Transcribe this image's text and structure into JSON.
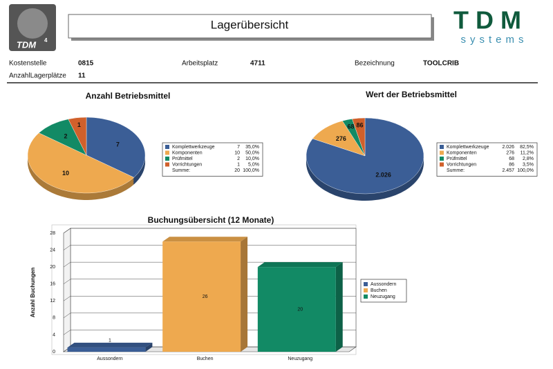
{
  "header": {
    "title": "Lagerübersicht",
    "logo_left": "TDM",
    "logo_left_version": "4",
    "logo_right": "TDM",
    "logo_right_sub": "systems"
  },
  "fields": [
    {
      "label": "Kostenstelle",
      "value": "0815"
    },
    {
      "label": "Arbeitsplatz",
      "value": "4711"
    },
    {
      "label": "Bezeichnung",
      "value": "TOOLCRIB"
    },
    {
      "label": "AnzahlLagerplätze",
      "value": "11"
    }
  ],
  "chart_data": [
    {
      "type": "pie",
      "title": "Anzahl Betriebsmittel",
      "categories": [
        "Komplettwerkzeuge",
        "Komponenten",
        "Prüfmittel",
        "Vorrichtungen"
      ],
      "values": [
        7,
        10,
        2,
        1
      ],
      "colors": [
        "#3b5e96",
        "#eea94f",
        "#128a65",
        "#d0602b"
      ],
      "shares": [
        {
          "value": 35,
          "label": "35,0%"
        },
        {
          "value": 50,
          "label": "50,0%"
        },
        {
          "value": 10,
          "label": "10,0%"
        },
        {
          "value": 5,
          "label": "5,0%"
        }
      ],
      "total_label": "Summe:",
      "total": 20,
      "total_share": {
        "value": 100,
        "label": "100,0%"
      }
    },
    {
      "type": "pie",
      "title": "Wert der Betriebsmittel",
      "categories": [
        "Komplettwerkzeuge",
        "Komponenten",
        "Prüfmittel",
        "Vorrichtungen"
      ],
      "values": [
        2026,
        276,
        68,
        86
      ],
      "value_labels": [
        "2.026",
        "276",
        "68",
        "86"
      ],
      "colors": [
        "#3b5e96",
        "#eea94f",
        "#128a65",
        "#d0602b"
      ],
      "shares": [
        {
          "value": 82.5,
          "label": "82,5%"
        },
        {
          "value": 11.2,
          "label": "11,2%"
        },
        {
          "value": 2.8,
          "label": "2,8%"
        },
        {
          "value": 3.5,
          "label": "3,5%"
        }
      ],
      "total_label": "Summe:",
      "total": {
        "value": 2457,
        "label": "2.457"
      },
      "total_share": {
        "value": 100,
        "label": "100,0%"
      }
    },
    {
      "type": "bar",
      "title": "Buchungsübersicht (12 Monate)",
      "y_label": "Anzahl Buchungen",
      "categories": [
        "Aussondern",
        "Buchen",
        "Neuzugang"
      ],
      "values": [
        1,
        26,
        20
      ],
      "colors": [
        "#3b5e96",
        "#eea94f",
        "#128a65"
      ],
      "ylim": [
        0,
        28
      ],
      "yticks": [
        0,
        4,
        8,
        12,
        16,
        20,
        24,
        28
      ],
      "grid": true,
      "legend": "right"
    }
  ]
}
